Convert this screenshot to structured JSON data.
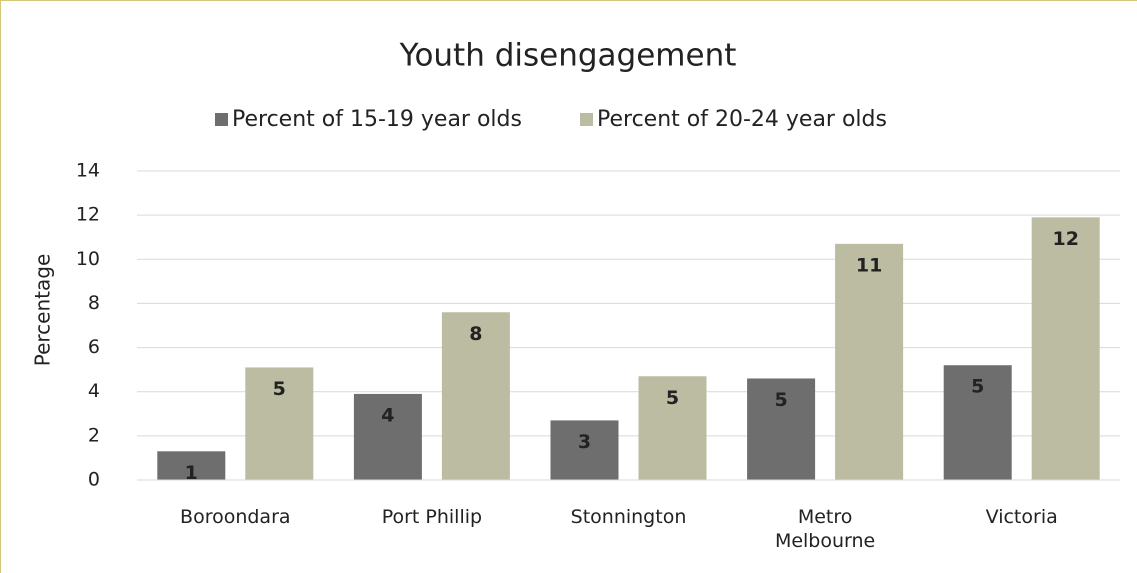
{
  "chart_data": {
    "type": "bar",
    "title": "Youth disengagement",
    "y_label": "Percentage",
    "categories": [
      "Boroondara",
      "Port Phillip",
      "Stonnington",
      "Metro Melbourne",
      "Victoria"
    ],
    "series": [
      {
        "name": "Percent of 15-19 year olds",
        "color": "#6e6e6e",
        "values": [
          1.3,
          3.9,
          2.7,
          4.6,
          5.2
        ],
        "value_labels": [
          "1",
          "4",
          "3",
          "5",
          "5"
        ]
      },
      {
        "name": "Percent of 20-24 year olds",
        "color": "#bcbca2",
        "values": [
          5.1,
          7.6,
          4.7,
          10.7,
          11.9
        ],
        "value_labels": [
          "5",
          "8",
          "5",
          "11",
          "12"
        ]
      }
    ],
    "ylim": [
      0,
      14
    ],
    "yticks": [
      0,
      2,
      4,
      6,
      8,
      10,
      12,
      14
    ],
    "grid": true,
    "legend": "top"
  }
}
